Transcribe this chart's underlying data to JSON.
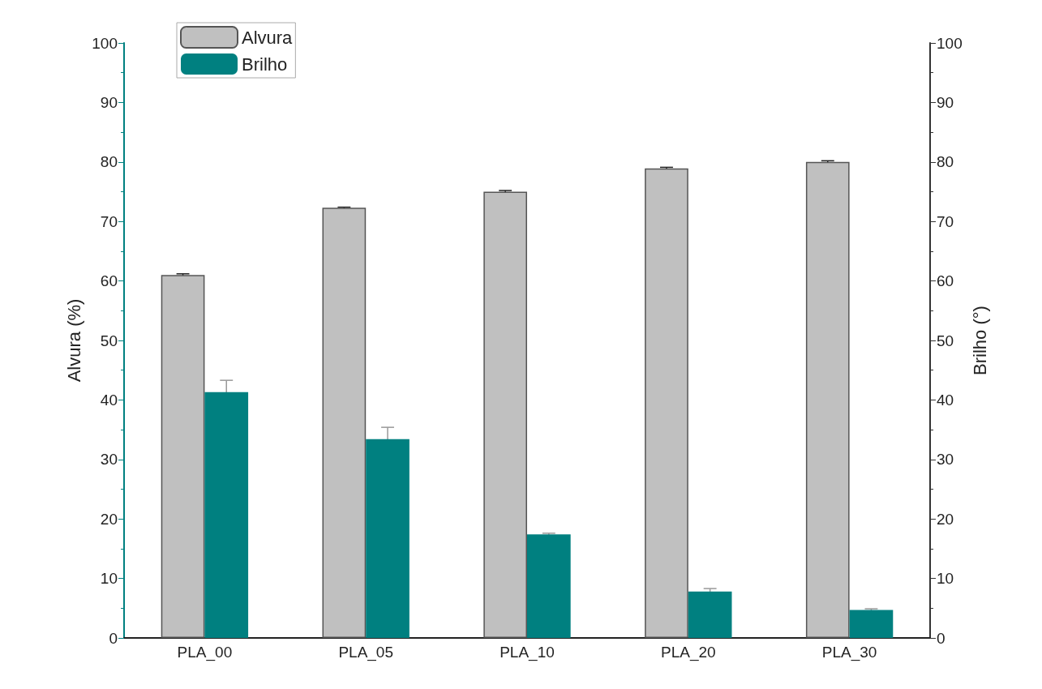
{
  "chart_data": {
    "type": "bar",
    "ylabel": "Alvura (%)",
    "y2label": "Brilho (°)",
    "categories": [
      "PLA_00",
      "PLA_05",
      "PLA_10",
      "PLA_20",
      "PLA_30"
    ],
    "series": [
      {
        "name": "Alvura",
        "color": "#c0c0c0",
        "values": [
          61,
          72.3,
          75,
          78.9,
          80
        ],
        "errors": [
          0.2,
          0.1,
          0.2,
          0.2,
          0.2
        ]
      },
      {
        "name": "Brilho",
        "color": "#008080",
        "axis": "y2",
        "values": [
          41.3,
          33.4,
          17.4,
          7.8,
          4.7
        ],
        "errors": [
          2,
          2,
          0.2,
          0.5,
          0.2
        ]
      }
    ],
    "ylim": [
      0,
      100
    ],
    "yticks": [
      0,
      10,
      20,
      30,
      40,
      50,
      60,
      70,
      80,
      90,
      100
    ],
    "y2lim": [
      0,
      100
    ],
    "y2ticks": [
      0,
      10,
      20,
      30,
      40,
      50,
      60,
      70,
      80,
      90,
      100
    ],
    "legend": "top left",
    "grid": false
  }
}
